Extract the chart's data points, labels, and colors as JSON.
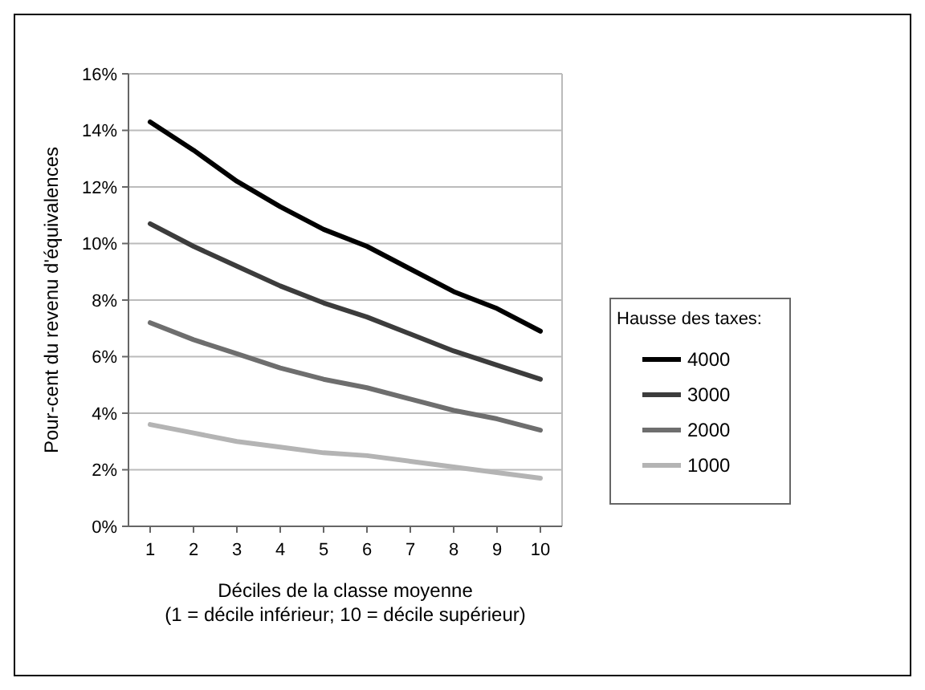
{
  "chart_data": {
    "type": "line",
    "xlabel": "Déciles de la classe moyenne\n(1 = décile inférieur; 10 = décile supérieur)",
    "ylabel": "Pour-cent du revenu d'équivalences",
    "legend_title": "Hausse des taxes:",
    "categories": [
      "1",
      "2",
      "3",
      "4",
      "5",
      "6",
      "7",
      "8",
      "9",
      "10"
    ],
    "series": [
      {
        "name": "4000",
        "color": "#000000",
        "values": [
          14.3,
          13.3,
          12.2,
          11.3,
          10.5,
          9.9,
          9.1,
          8.3,
          7.7,
          6.9
        ]
      },
      {
        "name": "3000",
        "color": "#3c3c3c",
        "values": [
          10.7,
          9.9,
          9.2,
          8.5,
          7.9,
          7.4,
          6.8,
          6.2,
          5.7,
          5.2
        ]
      },
      {
        "name": "2000",
        "color": "#6e6e6e",
        "values": [
          7.2,
          6.6,
          6.1,
          5.6,
          5.2,
          4.9,
          4.5,
          4.1,
          3.8,
          3.4
        ]
      },
      {
        "name": "1000",
        "color": "#b4b4b4",
        "values": [
          3.6,
          3.3,
          3.0,
          2.8,
          2.6,
          2.5,
          2.3,
          2.1,
          1.9,
          1.7
        ]
      }
    ],
    "ylim": [
      0,
      16
    ],
    "yticks": [
      {
        "value": 0,
        "label": "0%"
      },
      {
        "value": 2,
        "label": "2%"
      },
      {
        "value": 4,
        "label": "4%"
      },
      {
        "value": 6,
        "label": "6%"
      },
      {
        "value": 8,
        "label": "8%"
      },
      {
        "value": 10,
        "label": "10%"
      },
      {
        "value": 12,
        "label": "12%"
      },
      {
        "value": 14,
        "label": "14%"
      },
      {
        "value": 16,
        "label": "16%"
      }
    ],
    "grid": "y",
    "legend": "right",
    "line_style": "solid",
    "marker": "none"
  }
}
